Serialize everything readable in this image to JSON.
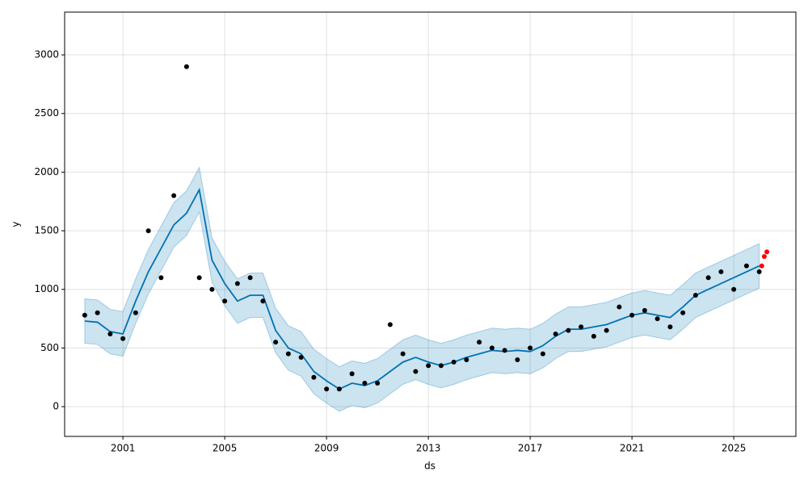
{
  "chart_data": {
    "type": "line",
    "xlabel": "ds",
    "ylabel": "y",
    "xlim": [
      1998.71,
      2027.44
    ],
    "ylim": [
      -254,
      3365
    ],
    "xticks": [
      2001,
      2005,
      2009,
      2013,
      2017,
      2021,
      2025
    ],
    "yticks": [
      0,
      500,
      1000,
      1500,
      2000,
      2500,
      3000
    ],
    "grid": true,
    "x": [
      1999.5,
      2000,
      2000.5,
      2001,
      2001.5,
      2002,
      2002.5,
      2003,
      2003.5,
      2004,
      2004.5,
      2005,
      2005.5,
      2006,
      2006.5,
      2007,
      2007.5,
      2008,
      2008.5,
      2009,
      2009.5,
      2010,
      2010.5,
      2011,
      2011.5,
      2012,
      2012.5,
      2013,
      2013.5,
      2014,
      2014.5,
      2015,
      2015.5,
      2016,
      2016.5,
      2017,
      2017.5,
      2018,
      2018.5,
      2019,
      2019.5,
      2020,
      2020.5,
      2021,
      2021.5,
      2022,
      2022.5,
      2023,
      2023.5,
      2024,
      2024.5,
      2025,
      2025.5,
      2026
    ],
    "series": [
      {
        "type": "band",
        "color": "#0072b2",
        "upper": [
          920,
          910,
          830,
          810,
          1090,
          1340,
          1540,
          1740,
          1840,
          2040,
          1440,
          1240,
          1090,
          1140,
          1140,
          840,
          690,
          640,
          490,
          410,
          340,
          390,
          370,
          410,
          490,
          570,
          610,
          570,
          540,
          570,
          610,
          640,
          670,
          660,
          670,
          660,
          710,
          790,
          850,
          850,
          870,
          890,
          930,
          970,
          990,
          970,
          950,
          1040,
          1140,
          1190,
          1240,
          1290,
          1340,
          1390
        ],
        "lower": [
          540,
          530,
          450,
          430,
          710,
          960,
          1160,
          1360,
          1460,
          1660,
          1060,
          860,
          710,
          760,
          760,
          460,
          310,
          260,
          110,
          30,
          -40,
          10,
          -10,
          30,
          110,
          190,
          230,
          190,
          160,
          190,
          230,
          260,
          290,
          280,
          290,
          280,
          330,
          410,
          470,
          470,
          490,
          510,
          550,
          590,
          610,
          590,
          570,
          660,
          760,
          810,
          860,
          910,
          960,
          1010
        ]
      },
      {
        "type": "line",
        "color": "#0072b2",
        "values": [
          730,
          720,
          640,
          620,
          900,
          1150,
          1350,
          1550,
          1650,
          1850,
          1250,
          1050,
          900,
          950,
          950,
          650,
          500,
          450,
          300,
          220,
          150,
          200,
          180,
          220,
          300,
          380,
          420,
          380,
          350,
          380,
          420,
          450,
          480,
          470,
          480,
          470,
          520,
          600,
          660,
          660,
          680,
          700,
          740,
          780,
          800,
          780,
          760,
          850,
          950,
          1000,
          1050,
          1100,
          1150,
          1200
        ]
      },
      {
        "type": "scatter",
        "color": "#000000",
        "x": [
          1999.5,
          2000,
          2000.5,
          2001,
          2001.5,
          2002,
          2002.5,
          2003,
          2003.5,
          2004,
          2004.5,
          2005,
          2005.5,
          2006,
          2006.5,
          2007,
          2007.5,
          2008,
          2008.5,
          2009,
          2009.5,
          2010,
          2010.5,
          2011,
          2011.5,
          2012,
          2012.5,
          2013,
          2013.5,
          2014,
          2014.5,
          2015,
          2015.5,
          2016,
          2016.5,
          2017,
          2017.5,
          2018,
          2018.5,
          2019,
          2019.5,
          2020,
          2020.5,
          2021,
          2021.5,
          2022,
          2022.5,
          2023,
          2023.5,
          2024,
          2024.5,
          2025,
          2025.5,
          2026
        ],
        "values": [
          780,
          800,
          620,
          580,
          800,
          1500,
          1100,
          1800,
          2900,
          1100,
          1000,
          900,
          1050,
          1100,
          900,
          550,
          450,
          420,
          250,
          150,
          150,
          280,
          200,
          200,
          700,
          450,
          300,
          350,
          350,
          380,
          400,
          550,
          500,
          480,
          400,
          500,
          450,
          620,
          650,
          680,
          600,
          650,
          850,
          780,
          820,
          750,
          680,
          800,
          950,
          1100,
          1150,
          1000,
          1200,
          1150
        ]
      },
      {
        "type": "scatter",
        "color": "#ff0000",
        "x": [
          2026.1,
          2026.2,
          2026.3
        ],
        "values": [
          1200,
          1280,
          1320
        ]
      }
    ]
  }
}
